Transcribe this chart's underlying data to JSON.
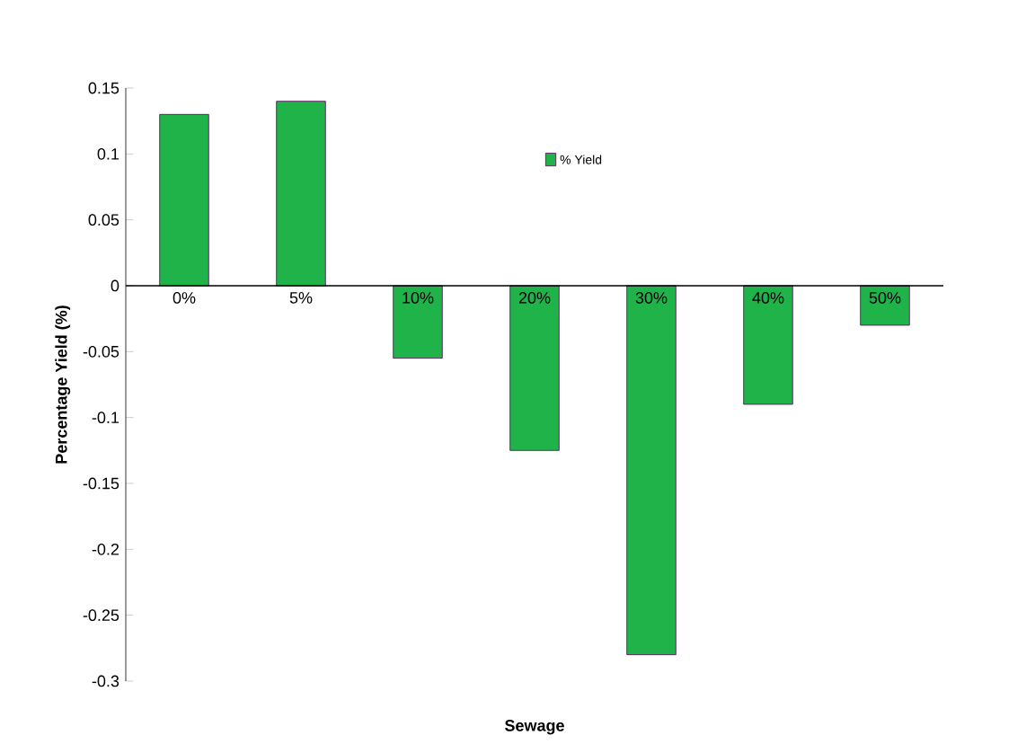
{
  "chart_data": {
    "type": "bar",
    "xlabel": "Sewage",
    "ylabel": "Percentage Yield (%)",
    "categories": [
      "0%",
      "5%",
      "10%",
      "20%",
      "30%",
      "40%",
      "50%"
    ],
    "series": [
      {
        "name": "% Yield",
        "color": "#1fb34a",
        "values": [
          0.13,
          0.14,
          -0.055,
          -0.125,
          -0.28,
          -0.09,
          -0.03
        ]
      }
    ],
    "ylim": [
      -0.3,
      0.15
    ],
    "yticks": [
      -0.3,
      -0.25,
      -0.2,
      -0.15,
      -0.1,
      -0.05,
      0,
      0.05,
      0.1,
      0.15
    ],
    "legend": "top",
    "grid": false
  }
}
